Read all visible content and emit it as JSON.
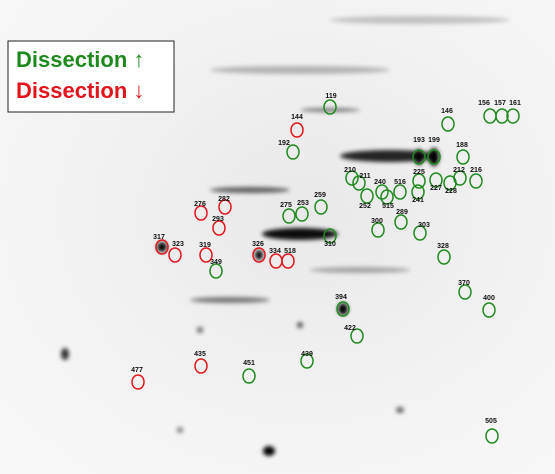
{
  "legend": [
    {
      "label": "Dissection ↑",
      "color": "#1e8a1e",
      "spots": [
        "119",
        "146",
        "156",
        "157",
        "161",
        "192",
        "193",
        "199",
        "188",
        "210",
        "211",
        "225",
        "212",
        "216",
        "240",
        "516",
        "227",
        "228",
        "241",
        "252",
        "515",
        "259",
        "275",
        "253",
        "289",
        "300",
        "303",
        "310",
        "328",
        "349",
        "370",
        "400",
        "394",
        "422",
        "439",
        "451",
        "505"
      ]
    },
    {
      "label": "Dissection ↓",
      "color": "#e3141c",
      "spots": [
        "144",
        "276",
        "282",
        "293",
        "317",
        "323",
        "319",
        "326",
        "334",
        "518",
        "435",
        "477"
      ]
    }
  ]
}
